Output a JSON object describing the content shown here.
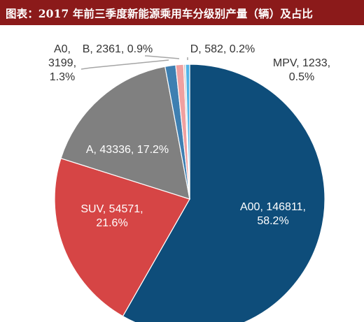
{
  "header": {
    "title": "图表：2017 年前三季度新能源乘用车分级别产量（辆）及占比"
  },
  "chart_data": {
    "type": "pie",
    "title": "图表：2017 年前三季度新能源乘用车分级别产量（辆）及占比",
    "slices": [
      {
        "label": "A00",
        "value": 146811,
        "percent": "58.2%",
        "color": "#0e4d7a",
        "text_color": "#ffffff"
      },
      {
        "label": "SUV",
        "value": 54571,
        "percent": "21.6%",
        "color": "#d64545",
        "text_color": "#ffffff"
      },
      {
        "label": "A",
        "value": 43336,
        "percent": "17.2%",
        "color": "#808080",
        "text_color": "#ffffff"
      },
      {
        "label": "A0",
        "value": 3199,
        "percent": "1.3%",
        "color": "#3e7fb1",
        "text_color": "#333333"
      },
      {
        "label": "B",
        "value": 2361,
        "percent": "0.9%",
        "color": "#f0a0a0",
        "text_color": "#333333"
      },
      {
        "label": "D",
        "value": 582,
        "percent": "0.2%",
        "color": "#c9c9c9",
        "text_color": "#333333"
      },
      {
        "label": "MPV",
        "value": 1233,
        "percent": "0.5%",
        "color": "#4fb3e8",
        "text_color": "#333333"
      }
    ],
    "label_lines": [
      [
        "A00, 146811,",
        "58.2%"
      ],
      [
        "SUV, 54571,",
        "21.6%"
      ],
      [
        "A, 43336, 17.2%"
      ],
      [
        "A0,",
        "3199,",
        "1.3%"
      ],
      [
        "B, 2361, 0.9%"
      ],
      [
        "D, 582, 0.2%"
      ],
      [
        "MPV, 1233,",
        "0.5%"
      ]
    ]
  }
}
